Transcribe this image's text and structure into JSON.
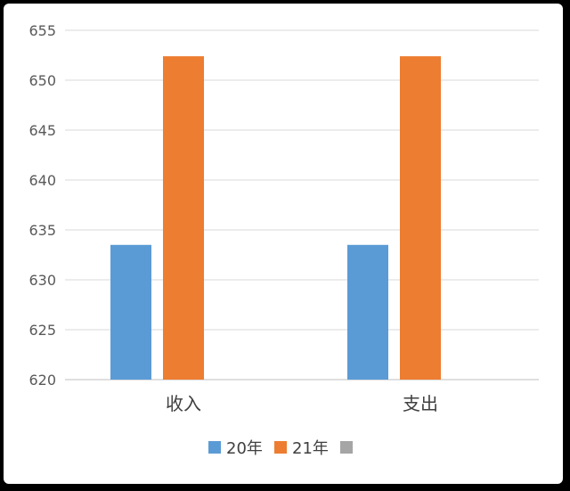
{
  "chart_data": {
    "type": "bar",
    "title": "",
    "xlabel": "",
    "ylabel": "",
    "categories": [
      "收入",
      "支出"
    ],
    "series": [
      {
        "name": "20年",
        "values": [
          633.5,
          633.5
        ],
        "color": "#5B9BD5"
      },
      {
        "name": "21年",
        "values": [
          652.4,
          652.4
        ],
        "color": "#ED7D31"
      },
      {
        "name": "",
        "values": [
          null,
          null
        ],
        "color": "#A5A5A5"
      }
    ],
    "ylim": [
      620,
      655
    ],
    "yticks": [
      "620",
      "625",
      "630",
      "635",
      "640",
      "645",
      "650",
      "655"
    ],
    "grid": true,
    "legend": "bottom"
  }
}
